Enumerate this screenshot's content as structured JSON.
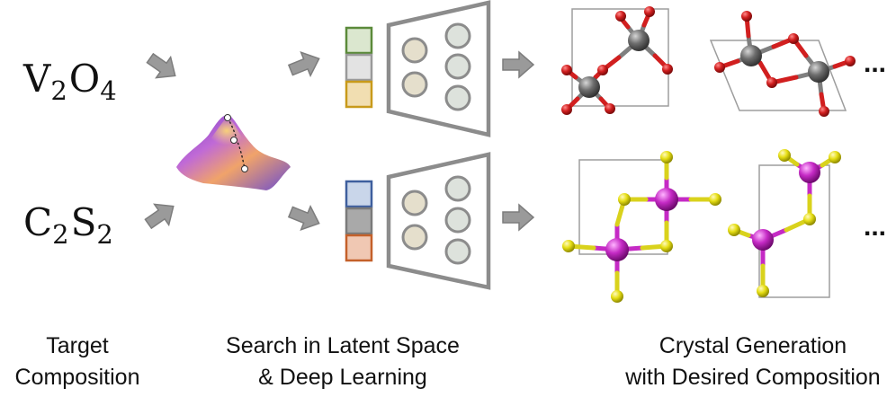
{
  "formulas": {
    "top": {
      "el1": "V",
      "sub1": "2",
      "el2": "O",
      "sub2": "4"
    },
    "bottom": {
      "el1": "C",
      "sub1": "2",
      "el2": "S",
      "sub2": "2"
    }
  },
  "captions": {
    "target": [
      "Target",
      "Composition"
    ],
    "search": [
      "Search in Latent Space",
      "& Deep Learning"
    ],
    "crystal": [
      "Crystal Generation",
      "with Desired Composition"
    ]
  },
  "ellipsis": "...",
  "colors": {
    "latent_top": [
      "#dbe7cf",
      "#e3e3e3",
      "#f1deb1"
    ],
    "latent_top_border": [
      "#5b8a3a",
      "#9a9a9a",
      "#c89a1a"
    ],
    "latent_bottom": [
      "#c9d6ea",
      "#a9a9a9",
      "#f0c8b3"
    ],
    "latent_bottom_border": [
      "#3e5f9e",
      "#7a7a7a",
      "#c4602a"
    ],
    "vanadium_atom": "#6e6e6e",
    "oxygen_atom": "#d11f1f",
    "carbon_atom": "#c52ac5",
    "sulfur_atom": "#e6de14"
  },
  "icons": [
    "arrow-right-icon",
    "energy-landscape-icon",
    "neural-network-icon",
    "crystal-structure-icon"
  ]
}
